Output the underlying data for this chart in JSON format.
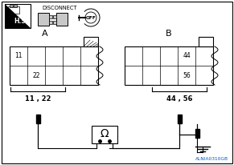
{
  "connector_A_label": "A",
  "connector_B_label": "B",
  "connector_A_text": "11 , 22",
  "connector_B_text": "44 , 56",
  "disconnect_text": "DISCONNECT",
  "hs_text": "H.S.",
  "watermark": "ALNIA0310GB",
  "watermark_color": "#0055cc",
  "pin_11": "11",
  "pin_22": "22",
  "pin_44": "44",
  "pin_56": "56",
  "omega": "Ω"
}
